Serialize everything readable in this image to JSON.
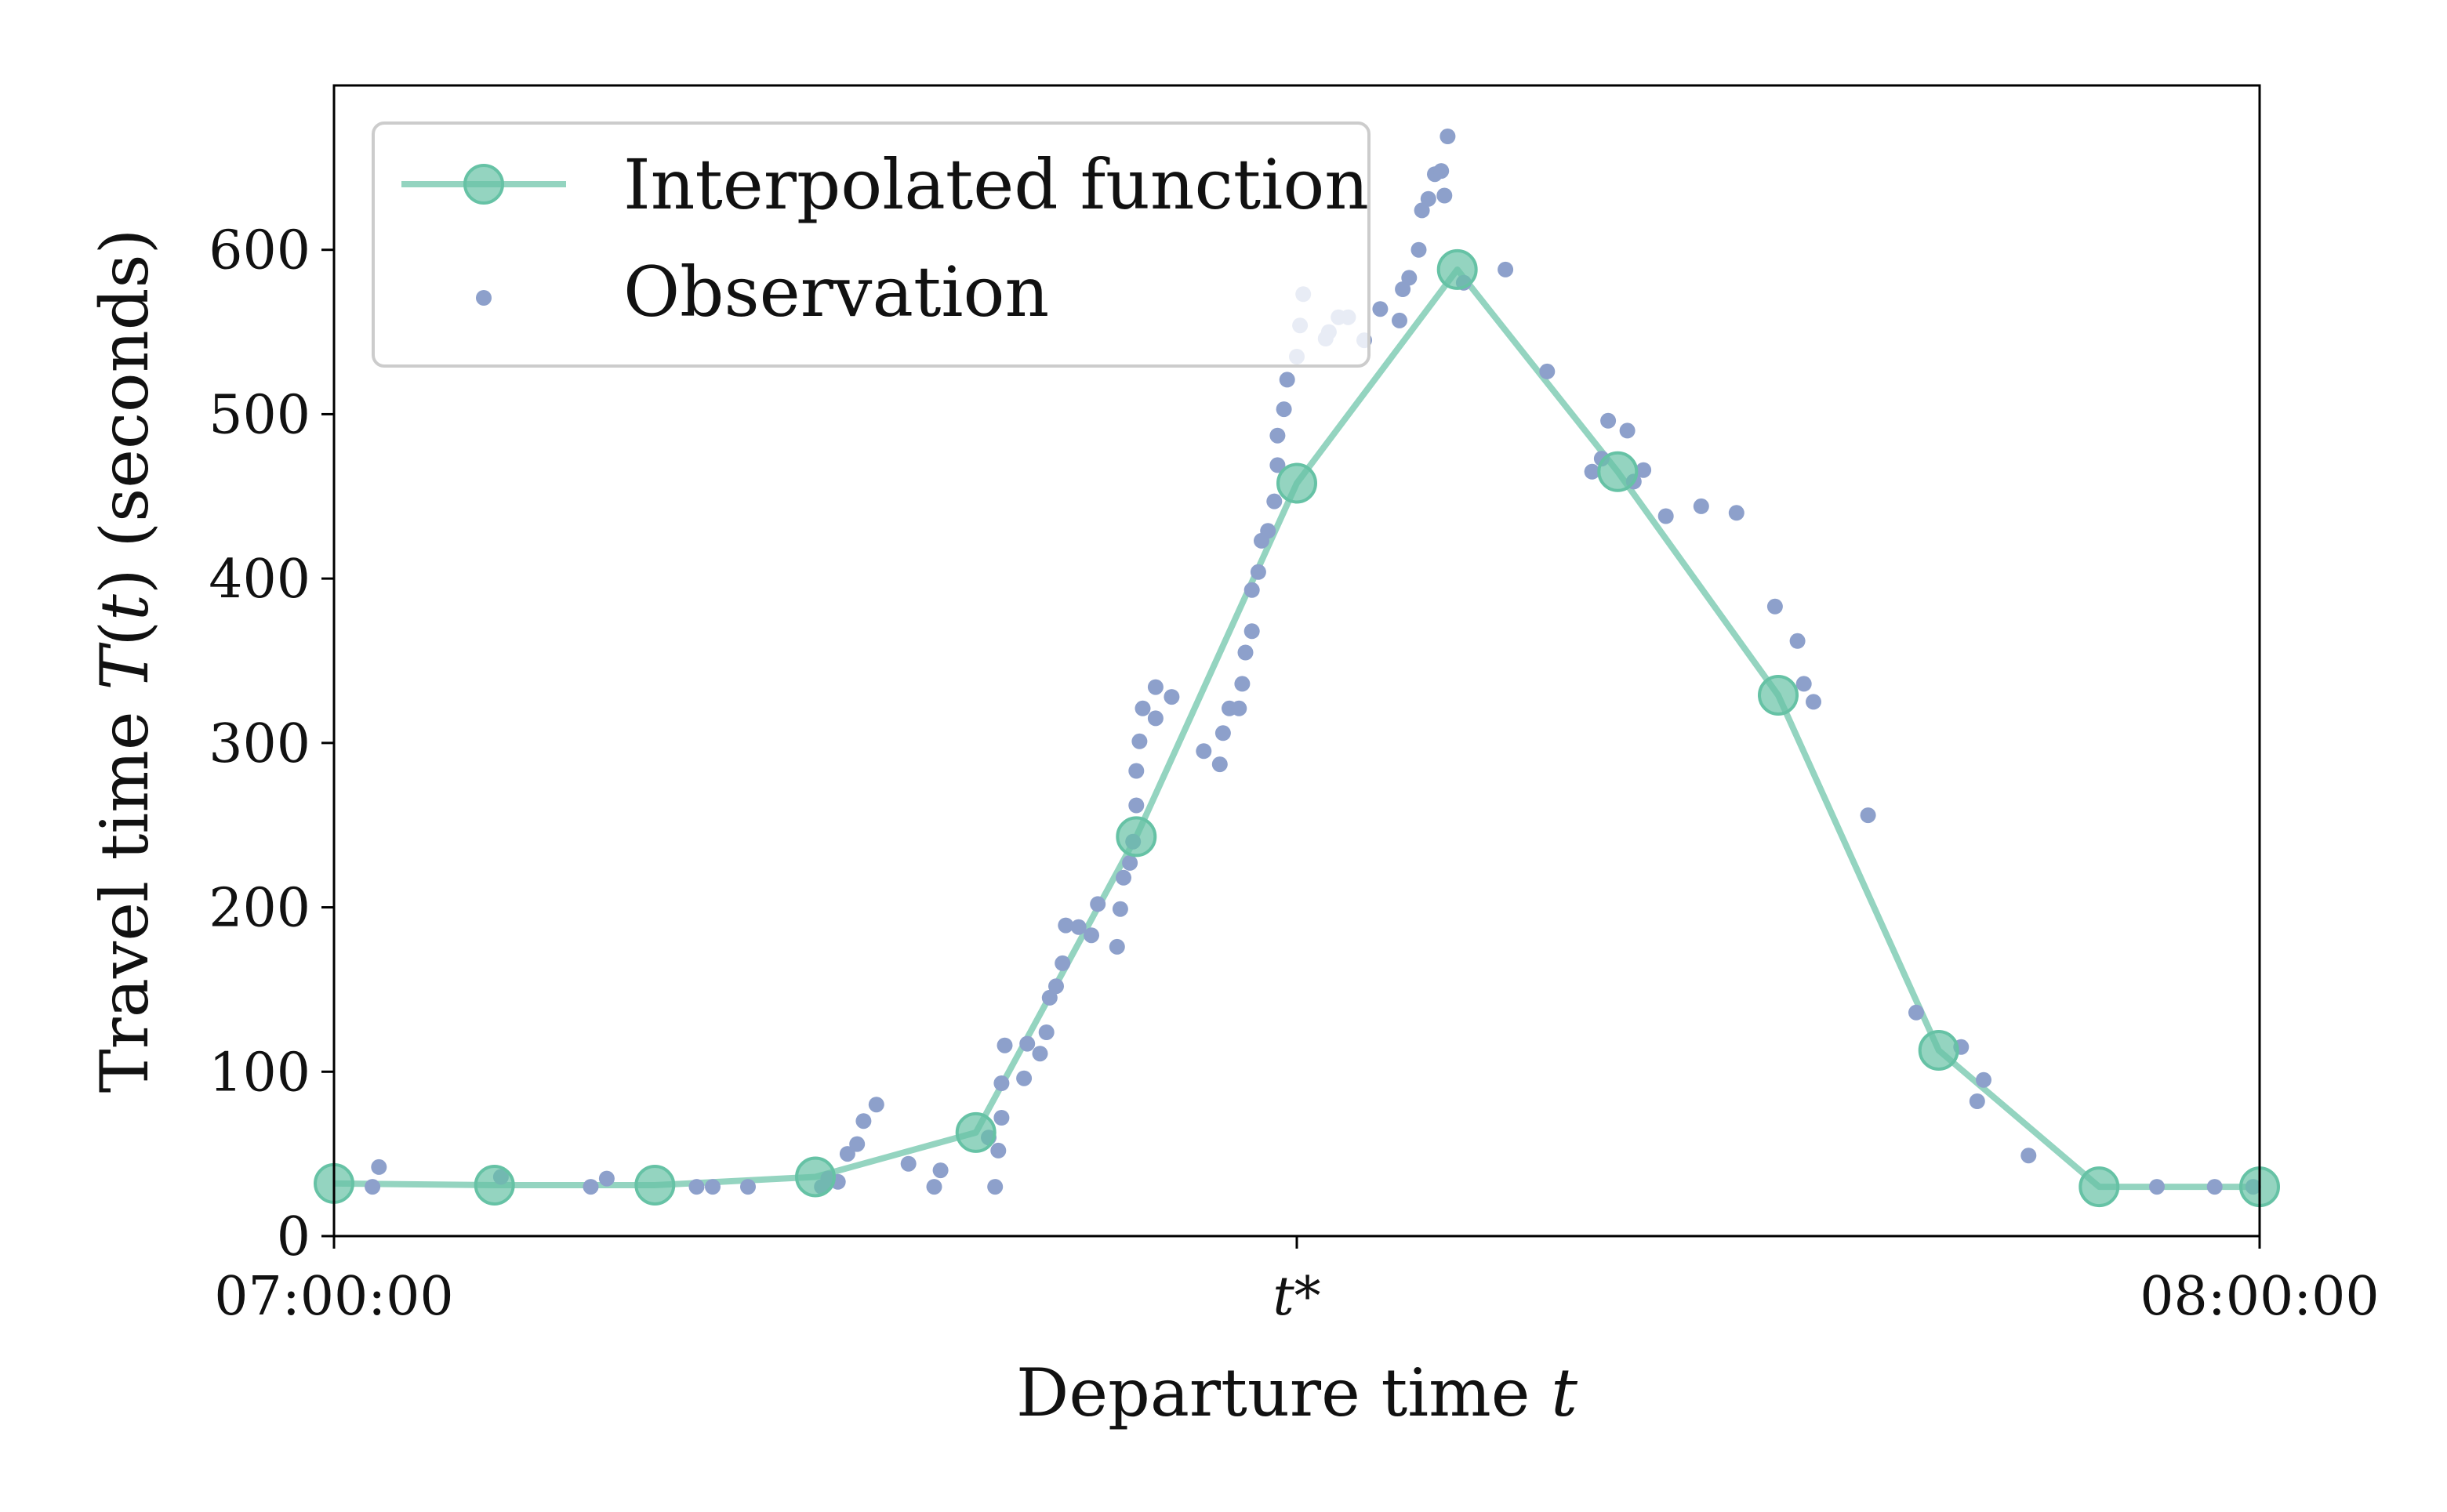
{
  "chart_data": {
    "type": "line",
    "xlabel": "Departure time",
    "xlabel_var": "t",
    "ylabel_prefix": "Travel time",
    "ylabel_func": "T",
    "ylabel_arg": "t",
    "ylabel_suffix": "(seconds)",
    "xlim": [
      0,
      60
    ],
    "ylim": [
      0,
      700
    ],
    "x_unit": "minutes after 07:00:00",
    "x_ticks": [
      {
        "value": 0,
        "label": "07:00:00",
        "style": "normal"
      },
      {
        "value": 30,
        "label": "t*",
        "style": "italic"
      },
      {
        "value": 60,
        "label": "08:00:00",
        "style": "normal"
      }
    ],
    "y_ticks": [
      0,
      100,
      200,
      300,
      400,
      500,
      600
    ],
    "grid": false,
    "legend": {
      "placement": "upper-left",
      "entries": [
        {
          "label": "Interpolated function",
          "kind": "line-marker"
        },
        {
          "label": "Observation",
          "kind": "dot"
        }
      ]
    },
    "colors": {
      "interpolated": "#66c2a5",
      "observation": "#8da0cb",
      "axes": "#000000"
    },
    "series": [
      {
        "name": "Interpolated function",
        "x": [
          0,
          5,
          10,
          15,
          20,
          25,
          30,
          35,
          40,
          45,
          50,
          55,
          60
        ],
        "y": [
          32,
          31,
          31,
          36,
          63,
          243,
          458,
          588,
          465,
          329,
          113,
          30,
          30
        ]
      },
      {
        "name": "Observation",
        "points": [
          [
            1.2,
            30
          ],
          [
            1.4,
            42
          ],
          [
            5.2,
            36
          ],
          [
            8.0,
            30
          ],
          [
            8.5,
            35
          ],
          [
            11.3,
            30
          ],
          [
            11.8,
            30
          ],
          [
            12.9,
            30
          ],
          [
            15.2,
            30
          ],
          [
            15.4,
            35
          ],
          [
            15.7,
            33
          ],
          [
            16.0,
            50
          ],
          [
            16.3,
            56
          ],
          [
            16.5,
            70
          ],
          [
            16.9,
            80
          ],
          [
            17.9,
            44
          ],
          [
            18.7,
            30
          ],
          [
            18.9,
            40
          ],
          [
            20.4,
            60
          ],
          [
            20.6,
            30
          ],
          [
            20.7,
            52
          ],
          [
            20.8,
            72
          ],
          [
            20.8,
            93
          ],
          [
            20.9,
            116
          ],
          [
            21.5,
            96
          ],
          [
            21.6,
            117
          ],
          [
            22.0,
            111
          ],
          [
            22.2,
            124
          ],
          [
            22.3,
            145
          ],
          [
            22.5,
            152
          ],
          [
            22.7,
            166
          ],
          [
            22.8,
            189
          ],
          [
            23.2,
            188
          ],
          [
            23.6,
            183
          ],
          [
            23.8,
            202
          ],
          [
            24.4,
            176
          ],
          [
            24.5,
            199
          ],
          [
            24.6,
            218
          ],
          [
            24.8,
            227
          ],
          [
            24.9,
            240
          ],
          [
            25.0,
            262
          ],
          [
            25.0,
            283
          ],
          [
            25.1,
            301
          ],
          [
            25.2,
            321
          ],
          [
            25.6,
            315
          ],
          [
            25.6,
            334
          ],
          [
            26.1,
            328
          ],
          [
            27.1,
            295
          ],
          [
            27.6,
            287
          ],
          [
            27.7,
            306
          ],
          [
            27.9,
            321
          ],
          [
            28.2,
            321
          ],
          [
            28.3,
            336
          ],
          [
            28.4,
            355
          ],
          [
            28.6,
            368
          ],
          [
            28.6,
            393
          ],
          [
            28.8,
            404
          ],
          [
            28.9,
            423
          ],
          [
            29.1,
            429
          ],
          [
            29.3,
            447
          ],
          [
            29.4,
            469
          ],
          [
            29.4,
            487
          ],
          [
            29.6,
            503
          ],
          [
            29.7,
            521
          ],
          [
            30.0,
            535
          ],
          [
            30.1,
            554
          ],
          [
            30.2,
            573
          ],
          [
            30.9,
            546
          ],
          [
            31.0,
            550
          ],
          [
            31.3,
            559
          ],
          [
            31.6,
            559
          ],
          [
            32.1,
            545
          ],
          [
            32.6,
            564
          ],
          [
            33.2,
            557
          ],
          [
            33.3,
            576
          ],
          [
            33.5,
            583
          ],
          [
            33.8,
            600
          ],
          [
            33.9,
            624
          ],
          [
            34.1,
            631
          ],
          [
            34.3,
            646
          ],
          [
            34.6,
            633
          ],
          [
            34.5,
            648
          ],
          [
            34.7,
            669
          ],
          [
            35.2,
            580
          ],
          [
            36.5,
            588
          ],
          [
            37.8,
            526
          ],
          [
            39.2,
            465
          ],
          [
            39.5,
            473
          ],
          [
            39.7,
            496
          ],
          [
            40.3,
            490
          ],
          [
            40.5,
            459
          ],
          [
            40.8,
            466
          ],
          [
            41.5,
            438
          ],
          [
            42.6,
            444
          ],
          [
            43.7,
            440
          ],
          [
            44.9,
            383
          ],
          [
            45.6,
            362
          ],
          [
            45.8,
            336
          ],
          [
            46.1,
            325
          ],
          [
            47.8,
            256
          ],
          [
            49.3,
            136
          ],
          [
            50.7,
            115
          ],
          [
            51.2,
            82
          ],
          [
            51.4,
            95
          ],
          [
            52.8,
            49
          ],
          [
            56.8,
            30
          ],
          [
            58.6,
            30
          ],
          [
            59.8,
            30
          ]
        ]
      }
    ]
  }
}
